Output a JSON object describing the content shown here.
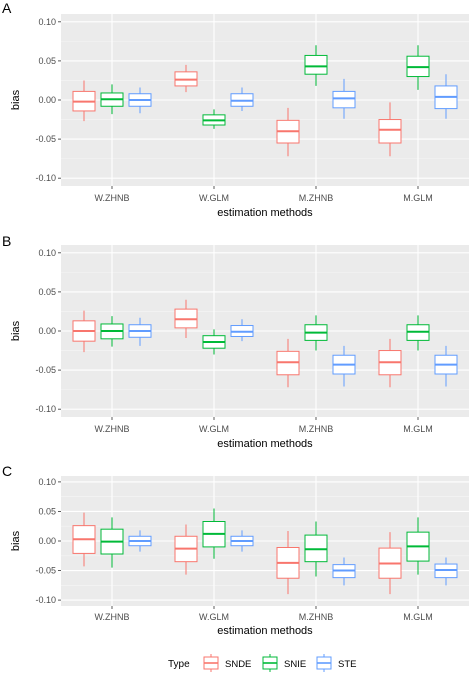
{
  "chart_data": [
    {
      "type": "boxplot",
      "panel_label": "A",
      "xlabel": "estimation methods",
      "ylabel": "bias",
      "ylim": [
        -0.11,
        0.11
      ],
      "yticks": [
        0.1,
        0.05,
        0.0,
        -0.05,
        -0.1
      ],
      "ytick_labels": [
        "0.10",
        "0.05",
        "0.00",
        "-0.05",
        "-0.10"
      ],
      "categories": [
        "W.ZHNB",
        "W.GLM",
        "M.ZHNB",
        "M.GLM"
      ],
      "series": [
        {
          "name": "SNDE",
          "boxes": [
            {
              "min": -0.027,
              "q1": -0.014,
              "median": -0.002,
              "q3": 0.011,
              "max": 0.025
            },
            {
              "min": 0.01,
              "q1": 0.018,
              "median": 0.026,
              "q3": 0.036,
              "max": 0.045
            },
            {
              "min": -0.072,
              "q1": -0.055,
              "median": -0.04,
              "q3": -0.026,
              "max": -0.01
            },
            {
              "min": -0.072,
              "q1": -0.055,
              "median": -0.038,
              "q3": -0.025,
              "max": -0.003
            }
          ]
        },
        {
          "name": "SNIE",
          "boxes": [
            {
              "min": -0.018,
              "q1": -0.008,
              "median": 0.001,
              "q3": 0.009,
              "max": 0.02
            },
            {
              "min": -0.037,
              "q1": -0.032,
              "median": -0.026,
              "q3": -0.019,
              "max": -0.012
            },
            {
              "min": 0.018,
              "q1": 0.033,
              "median": 0.043,
              "q3": 0.057,
              "max": 0.07
            },
            {
              "min": 0.013,
              "q1": 0.03,
              "median": 0.042,
              "q3": 0.056,
              "max": 0.07
            }
          ]
        },
        {
          "name": "STE",
          "boxes": [
            {
              "min": -0.017,
              "q1": -0.008,
              "median": 0.0,
              "q3": 0.008,
              "max": 0.016
            },
            {
              "min": -0.014,
              "q1": -0.008,
              "median": -0.001,
              "q3": 0.008,
              "max": 0.016
            },
            {
              "min": -0.024,
              "q1": -0.01,
              "median": 0.002,
              "q3": 0.011,
              "max": 0.027
            },
            {
              "min": -0.024,
              "q1": -0.011,
              "median": 0.004,
              "q3": 0.018,
              "max": 0.033
            }
          ]
        }
      ]
    },
    {
      "type": "boxplot",
      "panel_label": "B",
      "xlabel": "estimation methods",
      "ylabel": "bias",
      "ylim": [
        -0.11,
        0.11
      ],
      "yticks": [
        0.1,
        0.05,
        0.0,
        -0.05,
        -0.1
      ],
      "ytick_labels": [
        "0.10",
        "0.05",
        "0.00",
        "-0.05",
        "-0.10"
      ],
      "categories": [
        "W.ZHNB",
        "W.GLM",
        "M.ZHNB",
        "M.GLM"
      ],
      "series": [
        {
          "name": "SNDE",
          "boxes": [
            {
              "min": -0.027,
              "q1": -0.013,
              "median": 0.0,
              "q3": 0.013,
              "max": 0.026
            },
            {
              "min": -0.009,
              "q1": 0.004,
              "median": 0.015,
              "q3": 0.028,
              "max": 0.04
            },
            {
              "min": -0.072,
              "q1": -0.056,
              "median": -0.04,
              "q3": -0.026,
              "max": -0.01
            },
            {
              "min": -0.072,
              "q1": -0.056,
              "median": -0.04,
              "q3": -0.025,
              "max": -0.01
            }
          ]
        },
        {
          "name": "SNIE",
          "boxes": [
            {
              "min": -0.02,
              "q1": -0.01,
              "median": 0.0,
              "q3": 0.009,
              "max": 0.019
            },
            {
              "min": -0.03,
              "q1": -0.022,
              "median": -0.014,
              "q3": -0.006,
              "max": 0.002
            },
            {
              "min": -0.025,
              "q1": -0.012,
              "median": -0.002,
              "q3": 0.008,
              "max": 0.02
            },
            {
              "min": -0.025,
              "q1": -0.012,
              "median": -0.001,
              "q3": 0.008,
              "max": 0.02
            }
          ]
        },
        {
          "name": "STE",
          "boxes": [
            {
              "min": -0.019,
              "q1": -0.008,
              "median": 0.0,
              "q3": 0.008,
              "max": 0.017
            },
            {
              "min": -0.013,
              "q1": -0.007,
              "median": -0.001,
              "q3": 0.007,
              "max": 0.015
            },
            {
              "min": -0.071,
              "q1": -0.055,
              "median": -0.043,
              "q3": -0.031,
              "max": -0.019
            },
            {
              "min": -0.071,
              "q1": -0.055,
              "median": -0.043,
              "q3": -0.031,
              "max": -0.019
            }
          ]
        }
      ]
    },
    {
      "type": "boxplot",
      "panel_label": "C",
      "xlabel": "estimation methods",
      "ylabel": "bias",
      "ylim": [
        -0.11,
        0.11
      ],
      "yticks": [
        0.1,
        0.05,
        0.0,
        -0.05,
        -0.1
      ],
      "ytick_labels": [
        "0.10",
        "0.05",
        "0.00",
        "-0.05",
        "-0.10"
      ],
      "categories": [
        "W.ZHNB",
        "W.GLM",
        "M.ZHNB",
        "M.GLM"
      ],
      "series": [
        {
          "name": "SNDE",
          "boxes": [
            {
              "min": -0.043,
              "q1": -0.021,
              "median": 0.003,
              "q3": 0.026,
              "max": 0.048
            },
            {
              "min": -0.057,
              "q1": -0.035,
              "median": -0.013,
              "q3": 0.008,
              "max": 0.028
            },
            {
              "min": -0.09,
              "q1": -0.063,
              "median": -0.037,
              "q3": -0.011,
              "max": 0.017
            },
            {
              "min": -0.09,
              "q1": -0.063,
              "median": -0.038,
              "q3": -0.012,
              "max": 0.015
            }
          ]
        },
        {
          "name": "SNIE",
          "boxes": [
            {
              "min": -0.045,
              "q1": -0.022,
              "median": -0.001,
              "q3": 0.02,
              "max": 0.04
            },
            {
              "min": -0.03,
              "q1": -0.01,
              "median": 0.012,
              "q3": 0.033,
              "max": 0.055
            },
            {
              "min": -0.06,
              "q1": -0.035,
              "median": -0.014,
              "q3": 0.01,
              "max": 0.033
            },
            {
              "min": -0.057,
              "q1": -0.034,
              "median": -0.009,
              "q3": 0.015,
              "max": 0.04
            }
          ]
        },
        {
          "name": "STE",
          "boxes": [
            {
              "min": -0.018,
              "q1": -0.008,
              "median": 0.0,
              "q3": 0.008,
              "max": 0.018
            },
            {
              "min": -0.018,
              "q1": -0.008,
              "median": 0.0,
              "q3": 0.008,
              "max": 0.018
            },
            {
              "min": -0.075,
              "q1": -0.062,
              "median": -0.05,
              "q3": -0.04,
              "max": -0.028
            },
            {
              "min": -0.075,
              "q1": -0.062,
              "median": -0.049,
              "q3": -0.039,
              "max": -0.028
            }
          ]
        }
      ]
    }
  ],
  "legend": {
    "title": "Type",
    "position": "bottom",
    "items": [
      {
        "label": "SNDE",
        "color": "#f8766d"
      },
      {
        "label": "SNIE",
        "color": "#00ba38"
      },
      {
        "label": "STE",
        "color": "#619cff"
      }
    ]
  },
  "style": {
    "panel_background": "#ebebeb",
    "grid_major": "#ffffff",
    "text_color": "#4d4d4d"
  }
}
